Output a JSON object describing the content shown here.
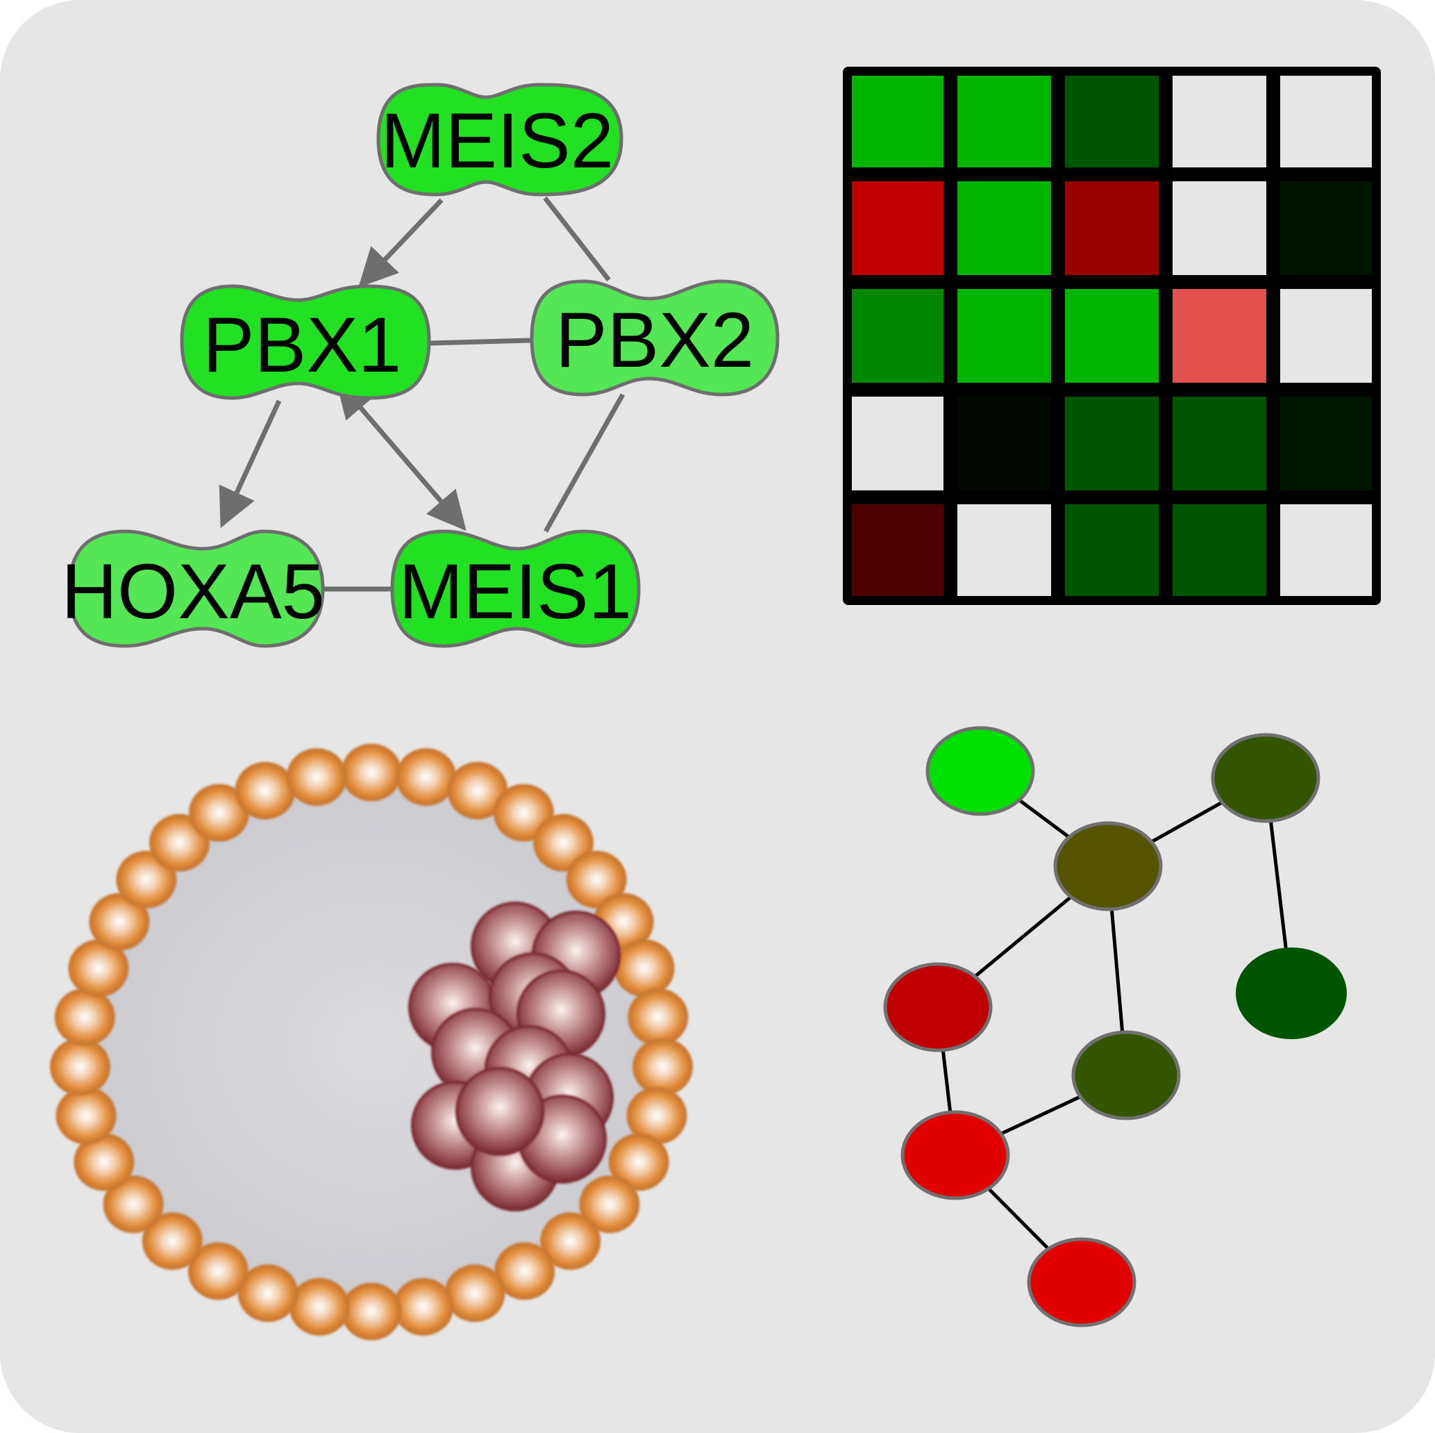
{
  "colors": {
    "panel_background": "#e6e6e6",
    "panel_corner": "#ffffff",
    "gene_node_fill": "#22e022",
    "gene_node_fill_light": "#55e655",
    "gene_node_stroke": "#6e6e6e",
    "gene_edge": "#6e6e6e",
    "heatmap_border": "#000000",
    "network_edge": "#000000",
    "network_node_stroke": "#707070",
    "outer_cell_color": "#e08a3c",
    "inner_cell_color": "#9e4a4f",
    "cavity_color": "#d8d8dc"
  },
  "gene_network": {
    "nodes": [
      {
        "id": "MEIS2",
        "label": "MEIS2"
      },
      {
        "id": "PBX1",
        "label": "PBX1"
      },
      {
        "id": "PBX2",
        "label": "PBX2"
      },
      {
        "id": "HOXA5",
        "label": "HOXA5"
      },
      {
        "id": "MEIS1",
        "label": "MEIS1"
      }
    ],
    "edges": [
      {
        "from": "MEIS2",
        "to": "PBX1",
        "type": "directed"
      },
      {
        "from": "MEIS2",
        "to": "PBX2",
        "type": "undirected"
      },
      {
        "from": "PBX1",
        "to": "PBX2",
        "type": "undirected"
      },
      {
        "from": "PBX1",
        "to": "HOXA5",
        "type": "directed"
      },
      {
        "from": "PBX1",
        "to": "MEIS1",
        "type": "bidirectional"
      },
      {
        "from": "PBX2",
        "to": "MEIS1",
        "type": "undirected"
      },
      {
        "from": "HOXA5",
        "to": "MEIS1",
        "type": "undirected"
      }
    ]
  },
  "heatmap": {
    "rows": 5,
    "cols": 5,
    "cells": [
      [
        "#00b400",
        "#00b400",
        "#005500",
        "#e6e6e6",
        "#e6e6e6"
      ],
      [
        "#c00000",
        "#00b400",
        "#990000",
        "#e6e6e6",
        "#001400"
      ],
      [
        "#008800",
        "#00b400",
        "#00b400",
        "#e45050",
        "#e6e6e6"
      ],
      [
        "#e6e6e6",
        "#000800",
        "#005500",
        "#005500",
        "#001600"
      ],
      [
        "#4c0000",
        "#e6e6e6",
        "#005500",
        "#005500",
        "#e6e6e6"
      ]
    ]
  },
  "color_network": {
    "nodes": [
      {
        "id": "n1",
        "fill": "#00e000"
      },
      {
        "id": "n2",
        "fill": "#345400"
      },
      {
        "id": "n3",
        "fill": "#545400"
      },
      {
        "id": "n4",
        "fill": "#c00000"
      },
      {
        "id": "n5",
        "fill": "#005400",
        "no_stroke": true
      },
      {
        "id": "n6",
        "fill": "#345400"
      },
      {
        "id": "n7",
        "fill": "#e00000"
      },
      {
        "id": "n8",
        "fill": "#e00000"
      }
    ],
    "edges": [
      [
        "n1",
        "n3"
      ],
      [
        "n2",
        "n3"
      ],
      [
        "n2",
        "n5"
      ],
      [
        "n3",
        "n4"
      ],
      [
        "n3",
        "n6"
      ],
      [
        "n4",
        "n7"
      ],
      [
        "n6",
        "n7"
      ],
      [
        "n7",
        "n8"
      ]
    ]
  },
  "blastocyst": {
    "outer_cell_count": 34,
    "inner_cell_count": 12
  }
}
